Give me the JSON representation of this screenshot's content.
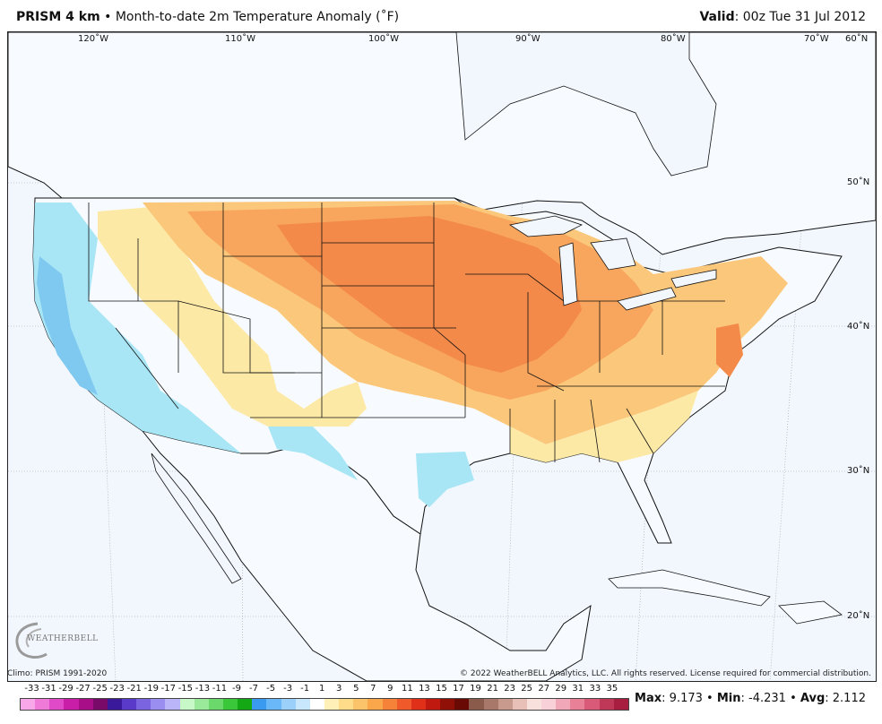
{
  "header": {
    "product": "PRISM 4 km",
    "bullet": "•",
    "description": "Month-to-date 2m Temperature Anomaly (˚F)",
    "valid_label": "Valid",
    "valid_value": ": 00z Tue 31 Jul 2012"
  },
  "map": {
    "lon_labels": [
      "120˚W",
      "110˚W",
      "100˚W",
      "90˚W",
      "80˚W",
      "70˚W",
      "60˚N"
    ],
    "lat_labels": [
      "50˚N",
      "40˚N",
      "30˚N",
      "20˚N"
    ],
    "colors": {
      "ocean": "#f2f6fd",
      "cool": "#a8e6f6",
      "cooler": "#7fc8f0",
      "neutral": "#f7fbff",
      "warm_light": "#fde9a6",
      "warm": "#fbc77a",
      "warmer": "#f8a65e",
      "hot": "#f48a4a"
    }
  },
  "logo": {
    "text": "WEATHERBELL"
  },
  "footer": {
    "climo": "Climo: PRISM 1991-2020",
    "copyright": "© 2022 WeatherBELL Analytics, LLC. All rights reserved. License required for commercial distribution."
  },
  "legend": {
    "labels": [
      "-33",
      "-31",
      "-29",
      "-27",
      "-25",
      "-23",
      "-21",
      "-19",
      "-17",
      "-15",
      "-13",
      "-11",
      "-9",
      "-7",
      "-5",
      "-3",
      "-1",
      "1",
      "3",
      "5",
      "7",
      "9",
      "11",
      "13",
      "15",
      "17",
      "19",
      "21",
      "23",
      "25",
      "27",
      "29",
      "31",
      "33",
      "35"
    ],
    "colors": [
      "#f8a8e8",
      "#f07ad8",
      "#e04ac8",
      "#c81ea8",
      "#a80e88",
      "#7a0a6a",
      "#3a1a9a",
      "#5a3ac8",
      "#7a64e0",
      "#9a8ef0",
      "#bab4f8",
      "#c8f8c8",
      "#9ae89a",
      "#6ad86a",
      "#3ac83a",
      "#14a814",
      "#3a9af0",
      "#6ab8f8",
      "#9ad0fa",
      "#c8e6fc",
      "#ffffff",
      "#fff0b8",
      "#fedc8a",
      "#fcc46a",
      "#faa64a",
      "#f6823a",
      "#f05a2a",
      "#e0301a",
      "#c01a10",
      "#901008",
      "#6a0a04",
      "#8a5a4a",
      "#a8786a",
      "#c89a8e",
      "#e8c0b8",
      "#f8e0dc",
      "#f8d0d8",
      "#f0a8b8",
      "#e88098",
      "#d85a78",
      "#c03858",
      "#a81e40"
    ]
  },
  "stats": {
    "max_label": "Max",
    "max_value": ": 9.173",
    "min_label": "Min",
    "min_value": ": -4.231",
    "avg_label": "Avg",
    "avg_value": ": 2.112",
    "sep": "•"
  }
}
